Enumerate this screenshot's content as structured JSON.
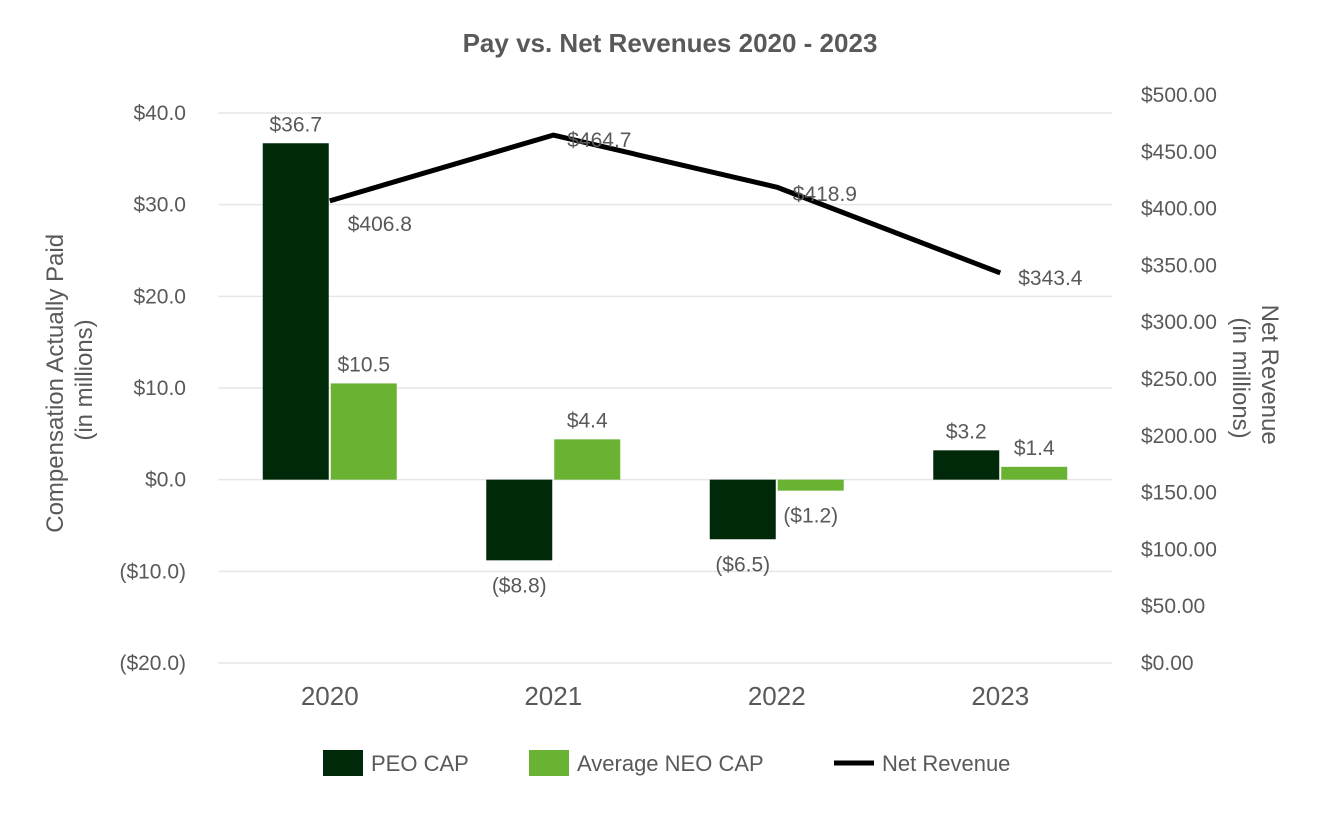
{
  "chart_data": {
    "type": "bar",
    "title": "Pay vs. Net Revenues 2020 - 2023",
    "categories": [
      "2020",
      "2021",
      "2022",
      "2023"
    ],
    "series": [
      {
        "name": "PEO CAP",
        "kind": "bar",
        "axis": "left",
        "color": "#002909",
        "values": [
          36.7,
          -8.8,
          -6.5,
          3.2
        ],
        "labels": [
          "$36.7",
          "($8.8)",
          "($6.5)",
          "$3.2"
        ]
      },
      {
        "name": "Average NEO CAP",
        "kind": "bar",
        "axis": "left",
        "color": "#6ab232",
        "values": [
          10.5,
          4.4,
          -1.2,
          1.4
        ],
        "labels": [
          "$10.5",
          "$4.4",
          "($1.2)",
          "$1.4"
        ]
      },
      {
        "name": "Net Revenue",
        "kind": "line",
        "axis": "right",
        "color": "#000000",
        "values": [
          406.8,
          464.7,
          418.9,
          343.4
        ],
        "labels": [
          "$406.8",
          "$464.7",
          "$418.9",
          "$343.4"
        ]
      }
    ],
    "ylabel_left": [
      "Compensation Actually Paid",
      "(in millions)"
    ],
    "ylabel_right": [
      "Net Revenue",
      "(in millions)"
    ],
    "ylim_left": [
      -20,
      40
    ],
    "ylim_right": [
      0,
      500
    ],
    "yticks_left": [
      "($20.0)",
      "($10.0)",
      "$0.0",
      "$10.0",
      "$20.0",
      "$30.0",
      "$40.0"
    ],
    "yticks_right": [
      "$0.00",
      "$50.00",
      "$100.00",
      "$150.00",
      "$200.00",
      "$250.00",
      "$300.00",
      "$350.00",
      "$400.00",
      "$450.00",
      "$500.00"
    ],
    "grid": true,
    "legend": "bottom"
  }
}
